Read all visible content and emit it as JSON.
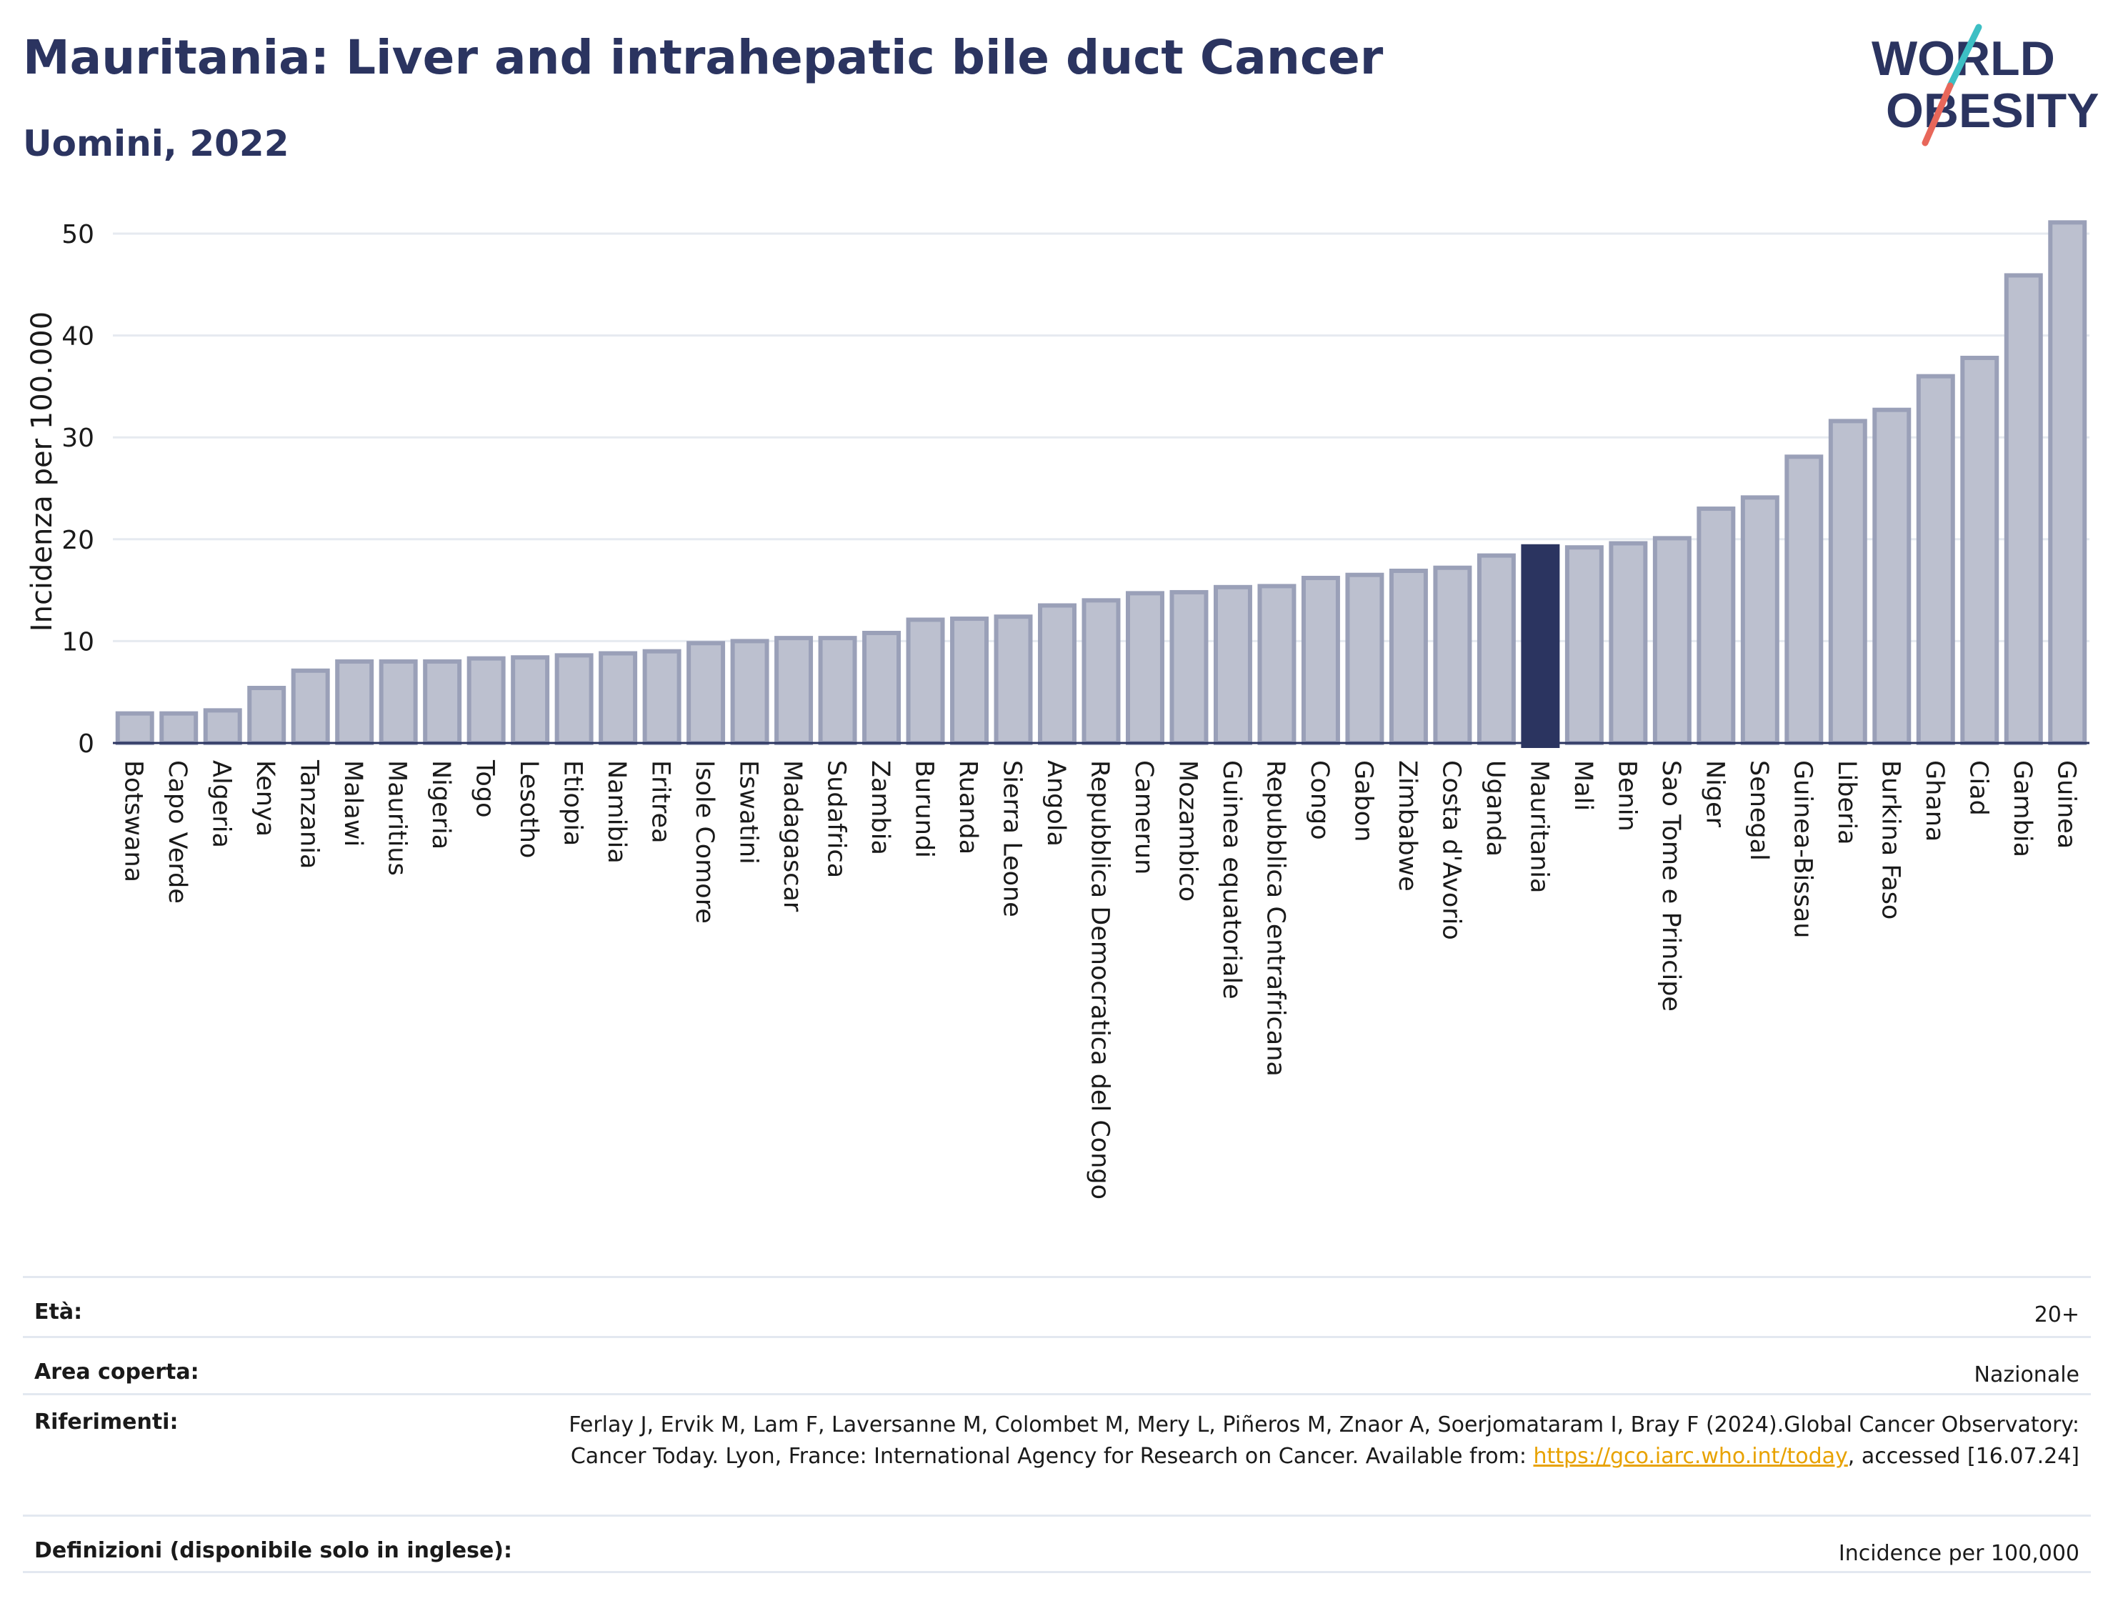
{
  "title": "Mauritania: Liver and intrahepatic bile duct Cancer",
  "subtitle": "Uomini, 2022",
  "logo": {
    "line1": "WORLD",
    "line2": "OBESITY",
    "accent_colors": [
      "#3dbfc4",
      "#e8675a"
    ]
  },
  "colors": {
    "bar": "#bcc0cf",
    "bar_stroke": "#9aa0b8",
    "highlight": "#2b3460",
    "title": "#2b3460",
    "grid": "#e6eaf0"
  },
  "chart_data": {
    "type": "bar",
    "highlight": "Mauritania",
    "ylabel": "Incidenza per 100.000",
    "ylim": [
      0,
      52
    ],
    "yticks": [
      0,
      10,
      20,
      30,
      40,
      50
    ],
    "grid": true,
    "categories": [
      "Botswana",
      "Capo Verde",
      "Algeria",
      "Kenya",
      "Tanzania",
      "Malawi",
      "Mauritius",
      "Nigeria",
      "Togo",
      "Lesotho",
      "Etiopia",
      "Namibia",
      "Eritrea",
      "Isole Comore",
      "Eswatini",
      "Madagascar",
      "Sudafrica",
      "Zambia",
      "Burundi",
      "Ruanda",
      "Sierra Leone",
      "Angola",
      "Repubblica Democratica del Congo",
      "Camerun",
      "Mozambico",
      "Guinea equatoriale",
      "Repubblica Centrafricana",
      "Congo",
      "Gabon",
      "Zimbabwe",
      "Costa d'Avorio",
      "Uganda",
      "Mauritania",
      "Mali",
      "Benin",
      "Sao Tome e Principe",
      "Niger",
      "Senegal",
      "Guinea-Bissau",
      "Liberia",
      "Burkina Faso",
      "Ghana",
      "Ciad",
      "Gambia",
      "Guinea"
    ],
    "values": [
      2.9,
      2.9,
      3.2,
      5.4,
      7.1,
      8.0,
      8.0,
      8.0,
      8.3,
      8.4,
      8.6,
      8.8,
      9.0,
      9.8,
      10.0,
      10.3,
      10.3,
      10.8,
      12.1,
      12.2,
      12.4,
      13.5,
      14.0,
      14.7,
      14.8,
      15.3,
      15.4,
      16.2,
      16.5,
      16.9,
      17.2,
      18.4,
      19.3,
      19.2,
      19.6,
      20.1,
      23.0,
      24.1,
      28.1,
      31.6,
      32.7,
      36.0,
      37.8,
      45.9,
      51.1
    ]
  },
  "meta": {
    "age_label": "Età:",
    "age_value": "20+",
    "area_label": "Area coperta:",
    "area_value": "Nazionale",
    "ref_label": "Riferimenti:",
    "ref_text_1": "Ferlay J, Ervik M, Lam F, Laversanne M, Colombet M, Mery L, Piñeros M, Znaor A, Soerjomataram I, Bray F (2024).Global Cancer Observatory: Cancer Today. Lyon, France: International Agency for Research on Cancer. Available from: ",
    "ref_link": "https://gco.iarc.who.int/today",
    "ref_text_2": ", accessed [16.07.24]",
    "def_label": "Definizioni (disponibile solo in inglese):",
    "def_value": "Incidence per 100,000"
  }
}
